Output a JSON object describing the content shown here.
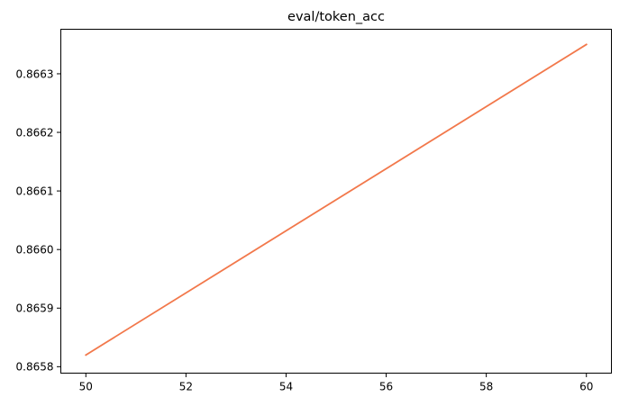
{
  "chart_data": {
    "type": "line",
    "title": "eval/token_acc",
    "xlabel": "",
    "ylabel": "",
    "xlim": [
      49.5,
      60.5
    ],
    "ylim": [
      0.865789,
      0.866376
    ],
    "x_ticks": [
      50,
      52,
      54,
      56,
      58,
      60
    ],
    "x_tick_labels": [
      "50",
      "52",
      "54",
      "56",
      "58",
      "60"
    ],
    "y_ticks": [
      0.8658,
      0.8659,
      0.866,
      0.8661,
      0.8662,
      0.8663
    ],
    "y_tick_labels": [
      "0.8658",
      "0.8659",
      "0.8660",
      "0.8661",
      "0.8662",
      "0.8663"
    ],
    "grid": false,
    "legend": "none",
    "series": [
      {
        "color": "#f2784b",
        "x": [
          50,
          60
        ],
        "y": [
          0.86582,
          0.86635
        ]
      }
    ]
  }
}
